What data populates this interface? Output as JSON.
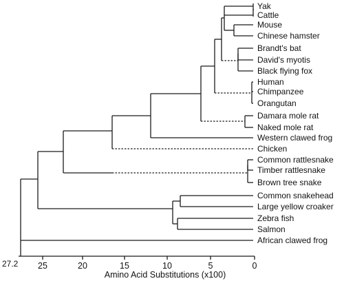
{
  "tree": {
    "root_distance_label": "27.2",
    "leaves": [
      "Yak",
      "Cattle",
      "Mouse",
      "Chinese hamster",
      "Brandt's bat",
      "David's myotis",
      "Black flying fox",
      "Human",
      "Chimpanzee",
      "Orangutan",
      "Damara mole rat",
      "Naked mole rat",
      "Western clawed frog",
      "Chicken",
      "Common rattlesnake",
      "Timber rattlesnake",
      "Brown tree snake",
      "Common snakehead",
      "Large yellow croaker",
      "Zebra fish",
      "Salmon",
      "African clawed frog"
    ]
  },
  "axis": {
    "title": "Amino Acid Substitutions (x100)",
    "ticks": [
      "25",
      "20",
      "15",
      "10",
      "5",
      "0"
    ]
  }
}
